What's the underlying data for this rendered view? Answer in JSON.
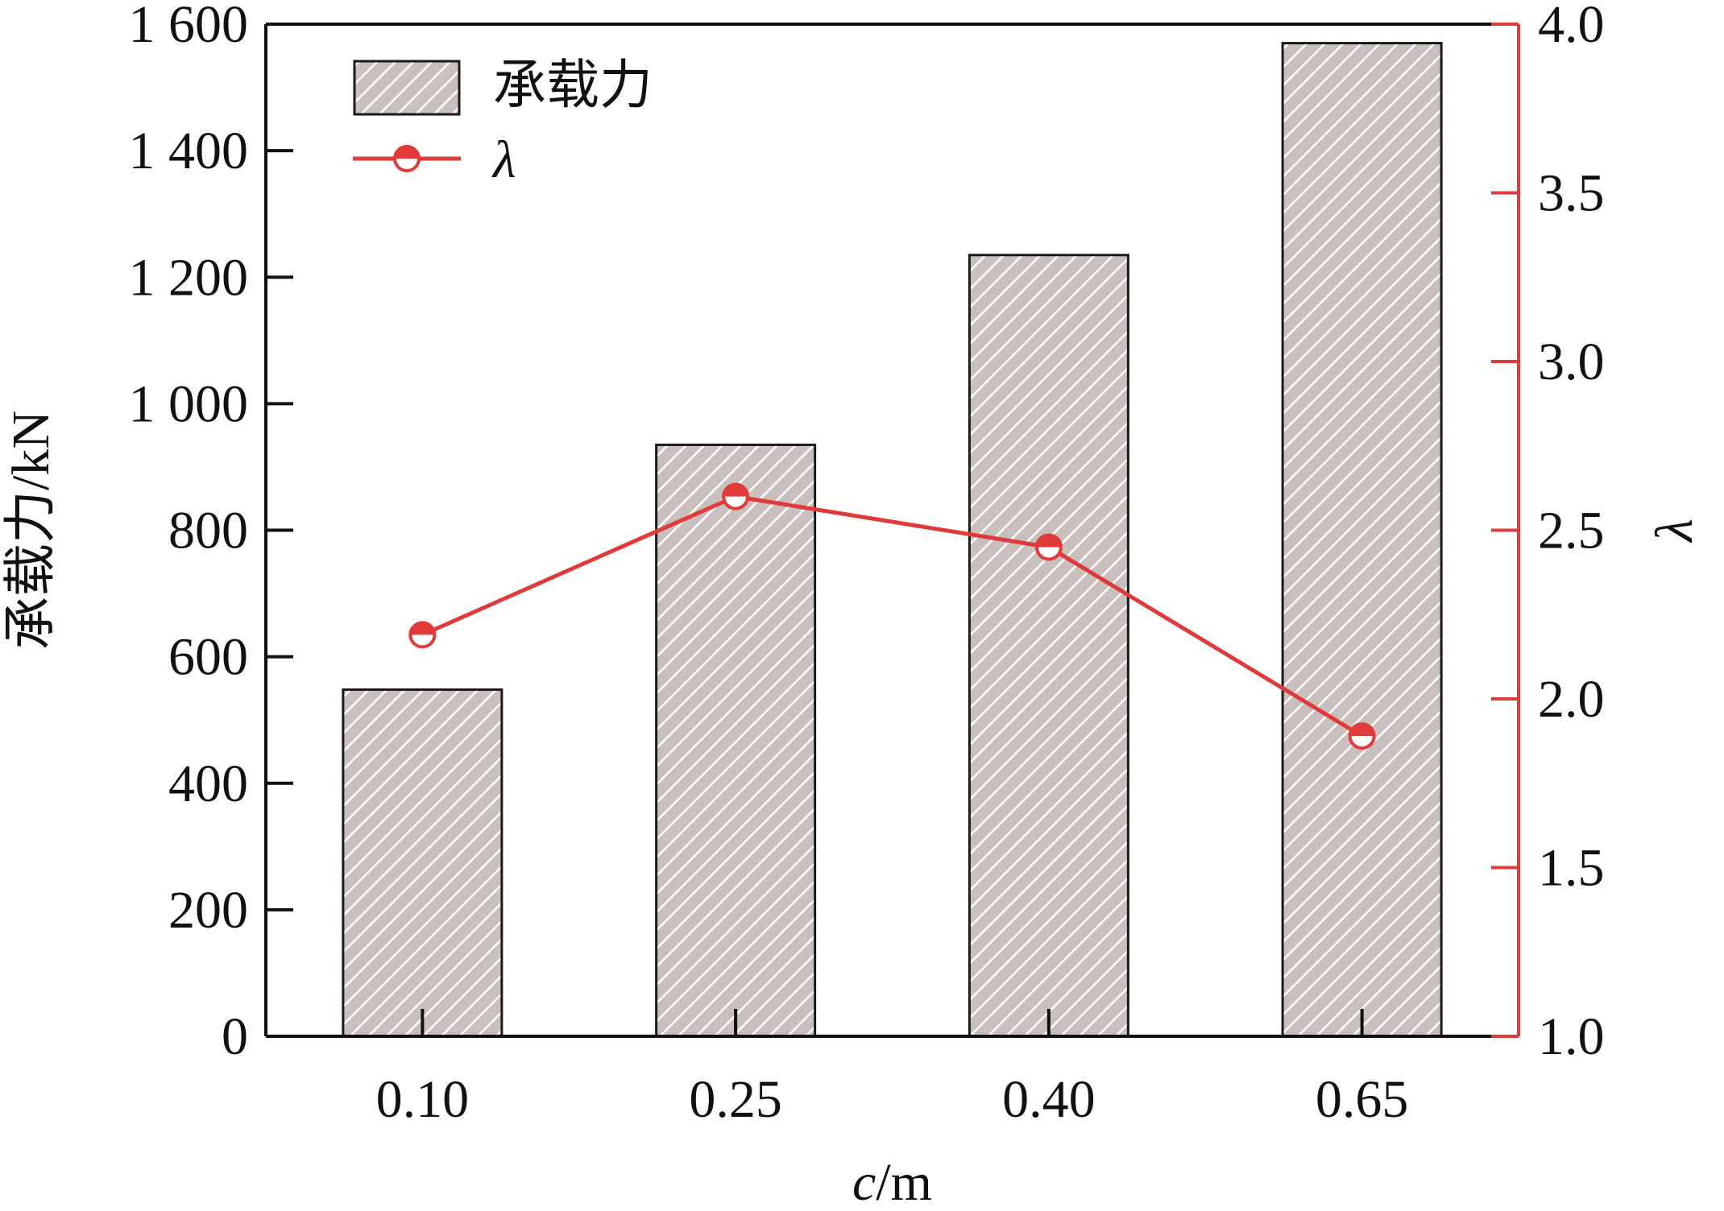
{
  "colors": {
    "bar_fill": "#c9bfbc",
    "bar_hatch": "#ffffff",
    "bar_stroke": "#1a1a1a",
    "line": "#e03a3a",
    "right_axis": "#e03a3a",
    "left_axis": "#111111"
  },
  "chart_data": {
    "type": "bar",
    "categories": [
      "0.10",
      "0.25",
      "0.40",
      "0.65"
    ],
    "series": [
      {
        "name": "承载力",
        "type": "bar",
        "axis": "left",
        "values": [
          548,
          935,
          1235,
          1570
        ]
      },
      {
        "name": "λ",
        "type": "line",
        "axis": "right",
        "values": [
          2.19,
          2.6,
          2.45,
          1.89
        ]
      }
    ],
    "xlabel_italic": "c",
    "xlabel_rest": "/m",
    "ylabel": "承载力/kN",
    "y2label": "λ",
    "ylim": [
      0,
      1600
    ],
    "y2lim": [
      1.0,
      4.0
    ],
    "yticks": [
      0,
      200,
      400,
      600,
      800,
      1000,
      1200,
      1400,
      1600
    ],
    "ytick_labels": [
      "0",
      "200",
      "400",
      "600",
      "800",
      "1 000",
      "1 200",
      "1 400",
      "1 600"
    ],
    "y2ticks": [
      1.0,
      1.5,
      2.0,
      2.5,
      3.0,
      3.5,
      4.0
    ],
    "y2tick_labels": [
      "1.0",
      "1.5",
      "2.0",
      "2.5",
      "3.0",
      "3.5",
      "4.0"
    ],
    "legend": {
      "position": "top-left",
      "entries": [
        "承载力",
        "λ"
      ]
    },
    "grid": false
  }
}
